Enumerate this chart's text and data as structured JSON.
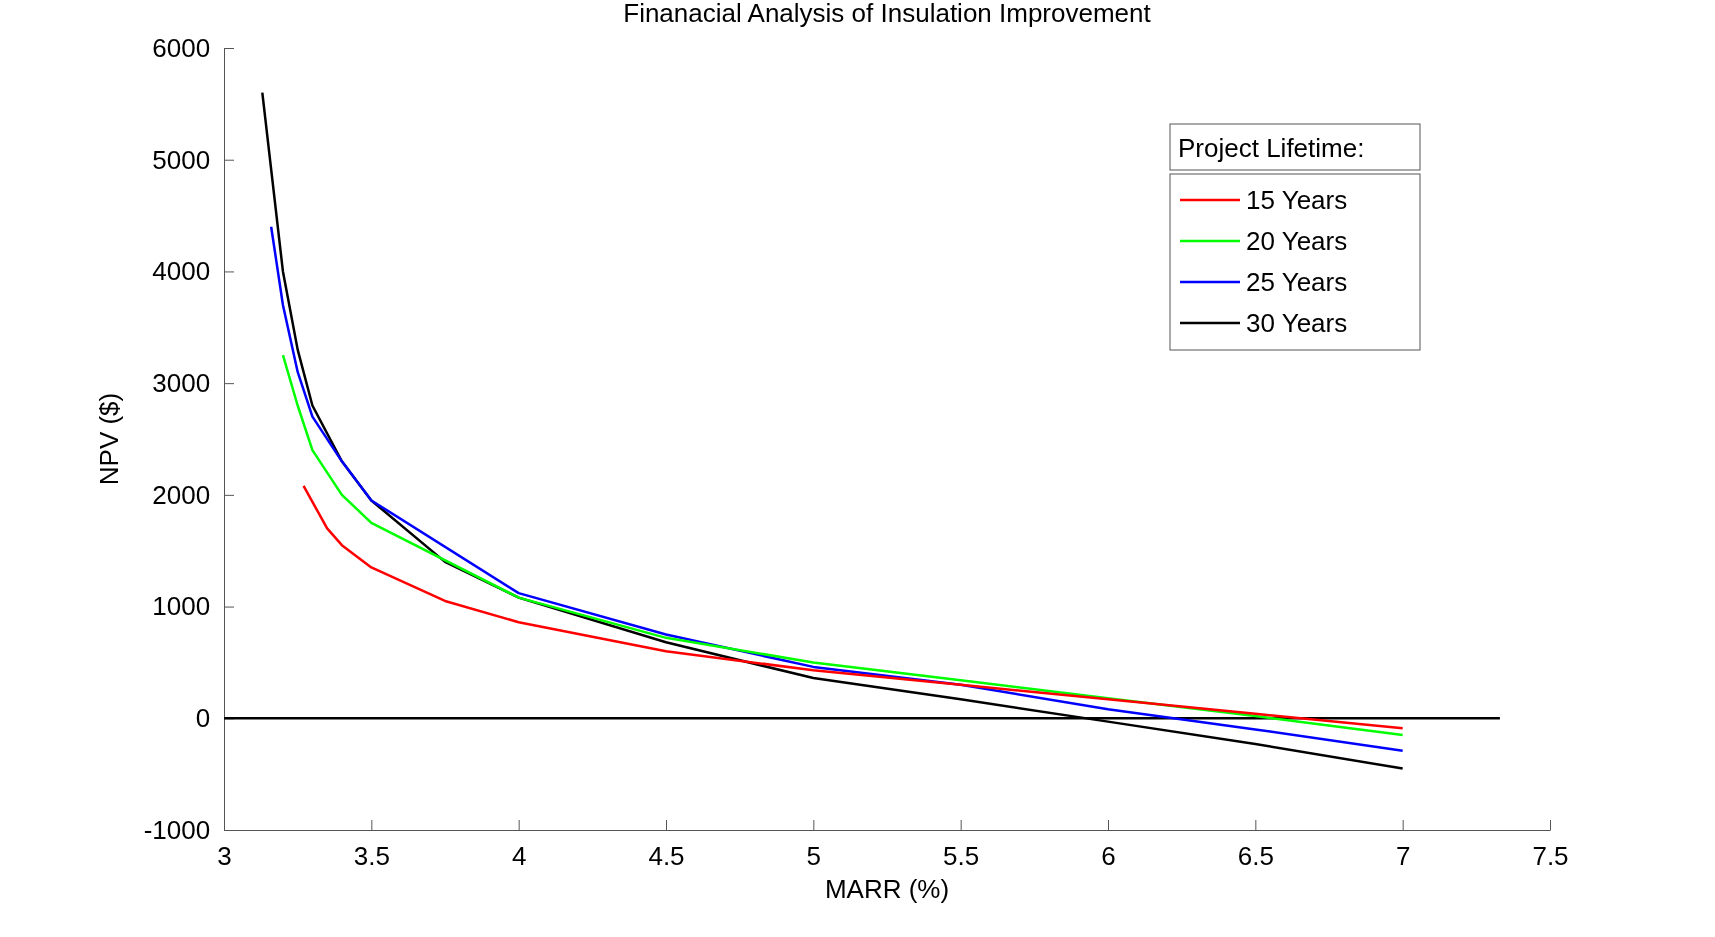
{
  "chart_data": {
    "type": "line",
    "title": "Finanacial Analysis of Insulation Improvement",
    "xlabel": "MARR (%)",
    "ylabel": "NPV ($)",
    "legend_title": "Project Lifetime:",
    "legend": "top right",
    "grid": false,
    "xlim": [
      3,
      7.5
    ],
    "xticks": [
      3,
      3.5,
      4,
      4.5,
      5,
      5.5,
      6,
      6.5,
      7,
      7.5
    ],
    "ylim": [
      -1000,
      6000
    ],
    "yticks": [
      -1000,
      0,
      1000,
      2000,
      3000,
      4000,
      5000,
      6000
    ],
    "series": [
      {
        "name": "15 Years",
        "color": "#ff0000",
        "x": [
          3.27,
          3.35,
          3.4,
          3.5,
          3.75,
          4,
          4.5,
          5,
          5.5,
          6,
          6.5,
          7
        ],
        "values": [
          2080,
          1700,
          1550,
          1350,
          1050,
          860,
          600,
          430,
          300,
          170,
          40,
          -90
        ]
      },
      {
        "name": "20 Years",
        "color": "#00ff00",
        "x": [
          3.2,
          3.25,
          3.3,
          3.4,
          3.5,
          4,
          4.5,
          5,
          5.5,
          6,
          6.5,
          7
        ],
        "values": [
          3250,
          2800,
          2400,
          2000,
          1750,
          1080,
          720,
          500,
          340,
          180,
          20,
          -150
        ]
      },
      {
        "name": "25 Years",
        "color": "#0000ff",
        "x": [
          3.16,
          3.2,
          3.25,
          3.3,
          3.4,
          3.5,
          4,
          4.5,
          5,
          5.5,
          6,
          6.5,
          7
        ],
        "values": [
          4400,
          3700,
          3100,
          2700,
          2300,
          1950,
          1120,
          750,
          460,
          300,
          80,
          -100,
          -290
        ]
      },
      {
        "name": "30 Years",
        "color": "#000000",
        "x": [
          3.13,
          3.2,
          3.25,
          3.3,
          3.4,
          3.5,
          3.75,
          4,
          4.5,
          5,
          5.5,
          6,
          6.5,
          7
        ],
        "values": [
          5600,
          4000,
          3300,
          2800,
          2300,
          1950,
          1400,
          1080,
          680,
          360,
          170,
          -30,
          -230,
          -450
        ]
      },
      {
        "color": "#000000",
        "x": [
          3,
          7.33
        ],
        "values": [
          0,
          0
        ]
      }
    ]
  }
}
